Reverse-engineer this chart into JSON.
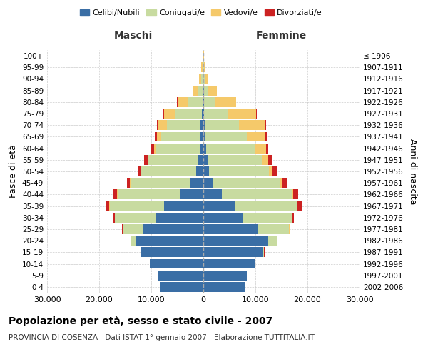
{
  "age_groups": [
    "0-4",
    "5-9",
    "10-14",
    "15-19",
    "20-24",
    "25-29",
    "30-34",
    "35-39",
    "40-44",
    "45-49",
    "50-54",
    "55-59",
    "60-64",
    "65-69",
    "70-74",
    "75-79",
    "80-84",
    "85-89",
    "90-94",
    "95-99",
    "100+"
  ],
  "birth_years": [
    "2002-2006",
    "1997-2001",
    "1992-1996",
    "1987-1991",
    "1982-1986",
    "1977-1981",
    "1972-1976",
    "1967-1971",
    "1962-1966",
    "1957-1961",
    "1952-1956",
    "1947-1951",
    "1942-1946",
    "1937-1941",
    "1932-1936",
    "1927-1931",
    "1922-1926",
    "1917-1921",
    "1912-1916",
    "1907-1911",
    "≤ 1906"
  ],
  "males": {
    "celibi": [
      8200,
      8800,
      10300,
      12000,
      13000,
      11500,
      9000,
      7500,
      4500,
      2500,
      1400,
      1000,
      700,
      600,
      500,
      300,
      200,
      200,
      100,
      50,
      30
    ],
    "coniugati": [
      10,
      10,
      20,
      100,
      900,
      4000,
      8000,
      10500,
      12000,
      11500,
      10500,
      9500,
      8500,
      7500,
      6500,
      5000,
      2800,
      900,
      300,
      100,
      50
    ],
    "vedovi": [
      0,
      0,
      1,
      2,
      5,
      10,
      20,
      30,
      50,
      100,
      150,
      200,
      300,
      800,
      1600,
      2200,
      2000,
      800,
      400,
      200,
      100
    ],
    "divorziati": [
      1,
      1,
      2,
      5,
      30,
      100,
      350,
      700,
      800,
      500,
      600,
      650,
      450,
      350,
      250,
      150,
      50,
      20,
      10,
      5,
      2
    ]
  },
  "females": {
    "nubili": [
      7900,
      8400,
      9800,
      11500,
      12500,
      10500,
      7500,
      6000,
      3500,
      1800,
      1100,
      800,
      500,
      400,
      300,
      200,
      100,
      100,
      50,
      30,
      20
    ],
    "coniugate": [
      10,
      10,
      30,
      200,
      1600,
      6000,
      9500,
      12000,
      13500,
      13000,
      11500,
      10500,
      9500,
      8000,
      6500,
      4500,
      2200,
      700,
      200,
      80,
      30
    ],
    "vedove": [
      0,
      0,
      2,
      5,
      10,
      20,
      50,
      100,
      200,
      400,
      700,
      1200,
      2000,
      3500,
      5000,
      5500,
      4000,
      1800,
      600,
      200,
      80
    ],
    "divorziate": [
      1,
      1,
      2,
      10,
      50,
      150,
      400,
      800,
      1000,
      800,
      800,
      800,
      500,
      350,
      250,
      100,
      50,
      20,
      10,
      5,
      2
    ]
  },
  "color_celibi": "#3a6ea5",
  "color_coniugati": "#c8dba0",
  "color_vedovi": "#f5c96a",
  "color_divorziati": "#cc2222",
  "xlim": 30000,
  "title": "Popolazione per età, sesso e stato civile - 2007",
  "subtitle": "PROVINCIA DI COSENZA - Dati ISTAT 1° gennaio 2007 - Elaborazione TUTTITALIA.IT",
  "label_maschi": "Maschi",
  "label_femmine": "Femmine",
  "ylabel_left": "Fasce di età",
  "ylabel_right": "Anni di nascita",
  "xtick_labels": [
    "30.000",
    "20.000",
    "10.000",
    "0",
    "10.000",
    "20.000",
    "30.000"
  ]
}
